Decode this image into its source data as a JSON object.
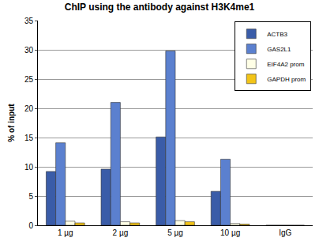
{
  "chart_data": {
    "type": "bar",
    "title": "ChIP using the antibody against H3K4me1",
    "y_label": "% of input",
    "categories": [
      "1 µg",
      "2 µg",
      "5 µg",
      "10 µg",
      "IgG"
    ],
    "series": [
      {
        "name": "ACTB3",
        "color": "#3a5ca8",
        "values": [
          9.2,
          9.6,
          15.1,
          5.8,
          0
        ]
      },
      {
        "name": "GAS2L1",
        "color": "#5b80cf",
        "values": [
          14.1,
          21.0,
          29.8,
          11.3,
          0
        ]
      },
      {
        "name": "EIF4A2 prom",
        "color": "#ffffe6",
        "values": [
          0.7,
          0.6,
          0.8,
          0.3,
          0
        ]
      },
      {
        "name": "GAPDH prom",
        "color": "#f2c418",
        "values": [
          0.4,
          0.4,
          0.6,
          0.2,
          0
        ]
      }
    ],
    "ylim": [
      0,
      35
    ],
    "yticks": [
      0,
      5,
      10,
      15,
      20,
      25,
      30,
      35
    ],
    "grid": true,
    "legend": "top-right"
  }
}
